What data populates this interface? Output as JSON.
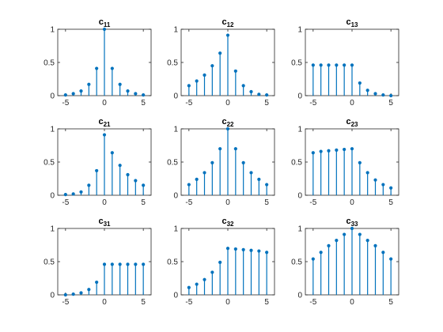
{
  "colors": {
    "stem": "#0072BD",
    "axis": "#262626",
    "background": "#ffffff"
  },
  "chart_data": [
    {
      "type": "stem",
      "title_main": "c",
      "title_sub": "11",
      "x": [
        -5,
        -4,
        -3,
        -2,
        -1,
        0,
        1,
        2,
        3,
        4,
        5
      ],
      "values": [
        0.01,
        0.03,
        0.07,
        0.17,
        0.41,
        1.0,
        0.41,
        0.17,
        0.07,
        0.03,
        0.01
      ],
      "xlim": [
        -6,
        6
      ],
      "ylim": [
        0,
        1
      ],
      "xticks": [
        -5,
        0,
        5
      ],
      "yticks": [
        0,
        0.5,
        1
      ],
      "xtick_labels": [
        "-5",
        "0",
        "5"
      ],
      "ytick_labels": [
        "0",
        "0.5",
        "1"
      ]
    },
    {
      "type": "stem",
      "title_main": "c",
      "title_sub": "12",
      "x": [
        -5,
        -4,
        -3,
        -2,
        -1,
        0,
        1,
        2,
        3,
        4,
        5
      ],
      "values": [
        0.15,
        0.22,
        0.31,
        0.45,
        0.64,
        0.91,
        0.37,
        0.15,
        0.06,
        0.02,
        0.01
      ],
      "xlim": [
        -6,
        6
      ],
      "ylim": [
        0,
        1
      ],
      "xticks": [
        -5,
        0,
        5
      ],
      "yticks": [
        0,
        0.5,
        1
      ],
      "xtick_labels": [
        "-5",
        "0",
        "5"
      ],
      "ytick_labels": [
        "0",
        "0.5",
        "1"
      ]
    },
    {
      "type": "stem",
      "title_main": "c",
      "title_sub": "13",
      "x": [
        -5,
        -4,
        -3,
        -2,
        -1,
        0,
        1,
        2,
        3,
        4,
        5
      ],
      "values": [
        0.46,
        0.46,
        0.46,
        0.46,
        0.46,
        0.46,
        0.19,
        0.08,
        0.03,
        0.01,
        0.0
      ],
      "xlim": [
        -6,
        6
      ],
      "ylim": [
        0,
        1
      ],
      "xticks": [
        -5,
        0,
        5
      ],
      "yticks": [
        0,
        0.5,
        1
      ],
      "xtick_labels": [
        "-5",
        "0",
        "5"
      ],
      "ytick_labels": [
        "0",
        "0.5",
        "1"
      ]
    },
    {
      "type": "stem",
      "title_main": "c",
      "title_sub": "21",
      "x": [
        -5,
        -4,
        -3,
        -2,
        -1,
        0,
        1,
        2,
        3,
        4,
        5
      ],
      "values": [
        0.01,
        0.02,
        0.05,
        0.15,
        0.37,
        0.91,
        0.64,
        0.45,
        0.31,
        0.22,
        0.15
      ],
      "xlim": [
        -6,
        6
      ],
      "ylim": [
        0,
        1
      ],
      "xticks": [
        -5,
        0,
        5
      ],
      "yticks": [
        0,
        0.5,
        1
      ],
      "xtick_labels": [
        "-5",
        "0",
        "5"
      ],
      "ytick_labels": [
        "0",
        "0.5",
        "1"
      ]
    },
    {
      "type": "stem",
      "title_main": "c",
      "title_sub": "22",
      "x": [
        -5,
        -4,
        -3,
        -2,
        -1,
        0,
        1,
        2,
        3,
        4,
        5
      ],
      "values": [
        0.16,
        0.24,
        0.34,
        0.49,
        0.7,
        1.0,
        0.7,
        0.49,
        0.34,
        0.24,
        0.16
      ],
      "xlim": [
        -6,
        6
      ],
      "ylim": [
        0,
        1
      ],
      "xticks": [
        -5,
        0,
        5
      ],
      "yticks": [
        0,
        0.5,
        1
      ],
      "xtick_labels": [
        "-5",
        "0",
        "5"
      ],
      "ytick_labels": [
        "0",
        "0.5",
        "1"
      ]
    },
    {
      "type": "stem",
      "title_main": "c",
      "title_sub": "23",
      "x": [
        -5,
        -4,
        -3,
        -2,
        -1,
        0,
        1,
        2,
        3,
        4,
        5
      ],
      "values": [
        0.64,
        0.66,
        0.67,
        0.68,
        0.69,
        0.7,
        0.49,
        0.34,
        0.23,
        0.16,
        0.11
      ],
      "xlim": [
        -6,
        6
      ],
      "ylim": [
        0,
        1
      ],
      "xticks": [
        -5,
        0,
        5
      ],
      "yticks": [
        0,
        0.5,
        1
      ],
      "xtick_labels": [
        "-5",
        "0",
        "5"
      ],
      "ytick_labels": [
        "0",
        "0.5",
        "1"
      ]
    },
    {
      "type": "stem",
      "title_main": "c",
      "title_sub": "31",
      "x": [
        -5,
        -4,
        -3,
        -2,
        -1,
        0,
        1,
        2,
        3,
        4,
        5
      ],
      "values": [
        0.0,
        0.01,
        0.03,
        0.08,
        0.19,
        0.46,
        0.46,
        0.46,
        0.46,
        0.46,
        0.46
      ],
      "xlim": [
        -6,
        6
      ],
      "ylim": [
        0,
        1
      ],
      "xticks": [
        -5,
        0,
        5
      ],
      "yticks": [
        0,
        0.5,
        1
      ],
      "xtick_labels": [
        "-5",
        "0",
        "5"
      ],
      "ytick_labels": [
        "0",
        "0.5",
        "1"
      ]
    },
    {
      "type": "stem",
      "title_main": "c",
      "title_sub": "32",
      "x": [
        -5,
        -4,
        -3,
        -2,
        -1,
        0,
        1,
        2,
        3,
        4,
        5
      ],
      "values": [
        0.11,
        0.16,
        0.23,
        0.34,
        0.49,
        0.7,
        0.69,
        0.68,
        0.67,
        0.66,
        0.64
      ],
      "xlim": [
        -6,
        6
      ],
      "ylim": [
        0,
        1
      ],
      "xticks": [
        -5,
        0,
        5
      ],
      "yticks": [
        0,
        0.5,
        1
      ],
      "xtick_labels": [
        "-5",
        "0",
        "5"
      ],
      "ytick_labels": [
        "0",
        "0.5",
        "1"
      ]
    },
    {
      "type": "stem",
      "title_main": "c",
      "title_sub": "33",
      "x": [
        -5,
        -4,
        -3,
        -2,
        -1,
        0,
        1,
        2,
        3,
        4,
        5
      ],
      "values": [
        0.54,
        0.64,
        0.74,
        0.82,
        0.91,
        1.0,
        0.91,
        0.82,
        0.74,
        0.64,
        0.54
      ],
      "xlim": [
        -6,
        6
      ],
      "ylim": [
        0,
        1
      ],
      "xticks": [
        -5,
        0,
        5
      ],
      "yticks": [
        0,
        0.5,
        1
      ],
      "xtick_labels": [
        "-5",
        "0",
        "5"
      ],
      "ytick_labels": [
        "0",
        "0.5",
        "1"
      ]
    }
  ]
}
